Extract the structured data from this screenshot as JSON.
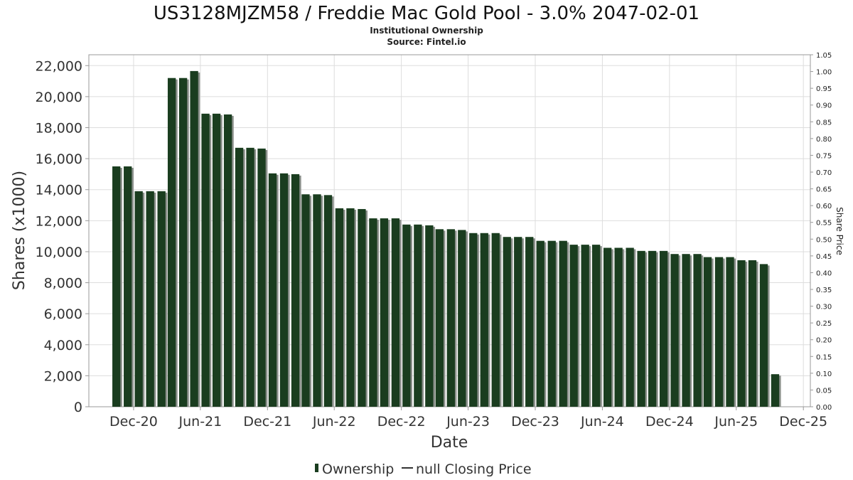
{
  "chart_data": {
    "type": "bar",
    "title": "US3128MJZM58 / Freddie Mac Gold Pool - 3.0% 2047-02-01",
    "subtitle": "Institutional Ownership",
    "source": "Source: Fintel.io",
    "xlabel": "Date",
    "ylabel": "Shares (x1000)",
    "y2label": "Share Price",
    "ylim": [
      0,
      22700
    ],
    "y2lim": [
      0,
      1.05
    ],
    "xlim": [
      "2020-08-01",
      "2025-12-20"
    ],
    "yticks": [
      0,
      2000,
      4000,
      6000,
      8000,
      10000,
      12000,
      14000,
      16000,
      18000,
      20000,
      22000
    ],
    "ytick_labels": [
      "0",
      "2,000",
      "4,000",
      "6,000",
      "8,000",
      "10,000",
      "12,000",
      "14,000",
      "16,000",
      "18,000",
      "20,000",
      "22,000"
    ],
    "y2ticks": [
      0,
      0.05,
      0.1,
      0.15,
      0.2,
      0.25,
      0.3,
      0.35,
      0.4,
      0.45,
      0.5,
      0.55,
      0.6,
      0.65,
      0.7,
      0.75,
      0.8,
      0.85,
      0.9,
      0.95,
      1.0,
      1.05
    ],
    "y2tick_labels": [
      "0.00",
      "0.05",
      "0.10",
      "0.15",
      "0.20",
      "0.25",
      "0.30",
      "0.35",
      "0.40",
      "0.45",
      "0.50",
      "0.55",
      "0.60",
      "0.65",
      "0.70",
      "0.75",
      "0.80",
      "0.85",
      "0.90",
      "0.95",
      "1.00",
      "1.05"
    ],
    "xticks": [
      {
        "date": "2020-12-01",
        "label": "Dec-20"
      },
      {
        "date": "2021-06-01",
        "label": "Jun-21"
      },
      {
        "date": "2021-12-01",
        "label": "Dec-21"
      },
      {
        "date": "2022-06-01",
        "label": "Jun-22"
      },
      {
        "date": "2022-12-01",
        "label": "Dec-22"
      },
      {
        "date": "2023-06-01",
        "label": "Jun-23"
      },
      {
        "date": "2023-12-01",
        "label": "Dec-23"
      },
      {
        "date": "2024-06-01",
        "label": "Jun-24"
      },
      {
        "date": "2024-12-01",
        "label": "Dec-24"
      },
      {
        "date": "2025-06-01",
        "label": "Jun-25"
      },
      {
        "date": "2025-12-01",
        "label": "Dec-25"
      }
    ],
    "grid": true,
    "legend_position": "bottom-center",
    "series": [
      {
        "name": "Ownership",
        "color": "#1a3d1f",
        "shadow_color": "#8a8f8a",
        "x": [
          "2020-10-15",
          "2020-11-15",
          "2020-12-15",
          "2021-01-15",
          "2021-02-15",
          "2021-03-15",
          "2021-04-15",
          "2021-05-15",
          "2021-06-15",
          "2021-07-15",
          "2021-08-15",
          "2021-09-15",
          "2021-10-15",
          "2021-11-15",
          "2021-12-15",
          "2022-01-15",
          "2022-02-15",
          "2022-03-15",
          "2022-04-15",
          "2022-05-15",
          "2022-06-15",
          "2022-07-15",
          "2022-08-15",
          "2022-09-15",
          "2022-10-15",
          "2022-11-15",
          "2022-12-15",
          "2023-01-15",
          "2023-02-15",
          "2023-03-15",
          "2023-04-15",
          "2023-05-15",
          "2023-06-15",
          "2023-07-15",
          "2023-08-15",
          "2023-09-15",
          "2023-10-15",
          "2023-11-15",
          "2023-12-15",
          "2024-01-15",
          "2024-02-15",
          "2024-03-15",
          "2024-04-15",
          "2024-05-15",
          "2024-06-15",
          "2024-07-15",
          "2024-08-15",
          "2024-09-15",
          "2024-10-15",
          "2024-11-15",
          "2024-12-15",
          "2025-01-15",
          "2025-02-15",
          "2025-03-15",
          "2025-04-15",
          "2025-05-15",
          "2025-06-15",
          "2025-07-15",
          "2025-08-15",
          "2025-09-15"
        ],
        "values": [
          15500,
          15500,
          13900,
          13900,
          13900,
          21200,
          21200,
          21650,
          18900,
          18900,
          18850,
          16700,
          16700,
          16650,
          15050,
          15050,
          15000,
          13700,
          13700,
          13650,
          12800,
          12800,
          12750,
          12150,
          12150,
          12150,
          11750,
          11750,
          11700,
          11450,
          11450,
          11400,
          11200,
          11200,
          11200,
          10950,
          10950,
          10950,
          10700,
          10700,
          10700,
          10450,
          10450,
          10450,
          10250,
          10250,
          10250,
          10050,
          10050,
          10050,
          9850,
          9850,
          9850,
          9650,
          9650,
          9650,
          9450,
          9450,
          9200,
          2100
        ]
      },
      {
        "name": "null Closing Price",
        "color": "#333333",
        "values": []
      }
    ]
  }
}
